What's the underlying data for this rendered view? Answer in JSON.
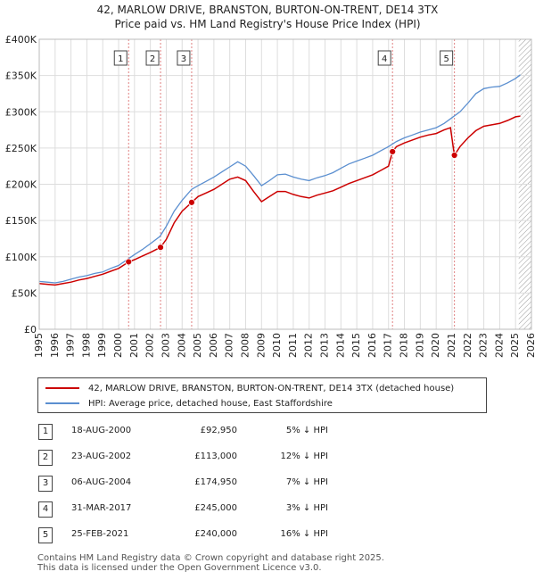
{
  "title_line1": "42, MARLOW DRIVE, BRANSTON, BURTON-ON-TRENT, DE14 3TX",
  "title_line2": "Price paid vs. HM Land Registry's House Price Index (HPI)",
  "colors": {
    "price": "#cc0000",
    "hpi": "#5b8fd0",
    "grid": "#dddddd",
    "marker_line": "#e08080",
    "plot_bg": "#ffffff",
    "hatch": "#999999"
  },
  "legend": {
    "price_label": "42, MARLOW DRIVE, BRANSTON, BURTON-ON-TRENT, DE14 3TX (detached house)",
    "hpi_label": "HPI: Average price, detached house, East Staffordshire"
  },
  "transactions": [
    {
      "num": "1",
      "date": "18-AUG-2000",
      "price": "£92,950",
      "hpi": "5% ↓ HPI"
    },
    {
      "num": "2",
      "date": "23-AUG-2002",
      "price": "£113,000",
      "hpi": "12% ↓ HPI"
    },
    {
      "num": "3",
      "date": "06-AUG-2004",
      "price": "£174,950",
      "hpi": "7% ↓ HPI"
    },
    {
      "num": "4",
      "date": "31-MAR-2017",
      "price": "£245,000",
      "hpi": "3% ↓ HPI"
    },
    {
      "num": "5",
      "date": "25-FEB-2021",
      "price": "£240,000",
      "hpi": "16% ↓ HPI"
    }
  ],
  "footer_line1": "Contains HM Land Registry data © Crown copyright and database right 2025.",
  "footer_line2": "This data is licensed under the Open Government Licence v3.0.",
  "chart_data": {
    "type": "line",
    "title": "42, MARLOW DRIVE, BRANSTON, BURTON-ON-TRENT, DE14 3TX",
    "subtitle": "Price paid vs. HM Land Registry's House Price Index (HPI)",
    "xlabel": "",
    "ylabel": "",
    "xlim": [
      1995,
      2026
    ],
    "ylim": [
      0,
      400000
    ],
    "x_ticks": [
      1995,
      1996,
      1997,
      1998,
      1999,
      2000,
      2001,
      2002,
      2003,
      2004,
      2005,
      2006,
      2007,
      2008,
      2009,
      2010,
      2011,
      2012,
      2013,
      2014,
      2015,
      2016,
      2017,
      2018,
      2019,
      2020,
      2021,
      2022,
      2023,
      2024,
      2025,
      2026
    ],
    "y_ticks": [
      {
        "value": 0,
        "label": "£0"
      },
      {
        "value": 50000,
        "label": "£50K"
      },
      {
        "value": 100000,
        "label": "£100K"
      },
      {
        "value": 150000,
        "label": "£150K"
      },
      {
        "value": 200000,
        "label": "£200K"
      },
      {
        "value": 250000,
        "label": "£250K"
      },
      {
        "value": 300000,
        "label": "£300K"
      },
      {
        "value": 350000,
        "label": "£350K"
      },
      {
        "value": 400000,
        "label": "£400K"
      }
    ],
    "grid": true,
    "hatched_from": 2025.2,
    "series": [
      {
        "name": "HPI: Average price, detached house, East Staffordshire",
        "points": [
          [
            1995,
            66000
          ],
          [
            1995.5,
            65000
          ],
          [
            1996,
            64000
          ],
          [
            1996.5,
            66000
          ],
          [
            1997,
            69000
          ],
          [
            1997.5,
            72000
          ],
          [
            1998,
            74000
          ],
          [
            1998.5,
            77000
          ],
          [
            1999,
            79000
          ],
          [
            1999.5,
            84000
          ],
          [
            2000,
            88000
          ],
          [
            2000.6,
            97000
          ],
          [
            2001,
            103000
          ],
          [
            2001.5,
            110000
          ],
          [
            2002,
            118000
          ],
          [
            2002.6,
            128000
          ],
          [
            2003,
            142000
          ],
          [
            2003.5,
            163000
          ],
          [
            2004,
            178000
          ],
          [
            2004.6,
            193000
          ],
          [
            2005,
            198000
          ],
          [
            2005.5,
            204000
          ],
          [
            2006,
            210000
          ],
          [
            2006.5,
            217000
          ],
          [
            2007,
            224000
          ],
          [
            2007.5,
            231000
          ],
          [
            2008,
            225000
          ],
          [
            2008.5,
            212000
          ],
          [
            2009,
            198000
          ],
          [
            2009.5,
            205000
          ],
          [
            2010,
            213000
          ],
          [
            2010.5,
            214000
          ],
          [
            2011,
            210000
          ],
          [
            2011.5,
            207000
          ],
          [
            2012,
            205000
          ],
          [
            2012.5,
            209000
          ],
          [
            2013,
            212000
          ],
          [
            2013.5,
            216000
          ],
          [
            2014,
            222000
          ],
          [
            2014.5,
            228000
          ],
          [
            2015,
            232000
          ],
          [
            2015.5,
            236000
          ],
          [
            2016,
            240000
          ],
          [
            2016.5,
            246000
          ],
          [
            2017,
            252000
          ],
          [
            2017.5,
            259000
          ],
          [
            2018,
            264000
          ],
          [
            2018.5,
            268000
          ],
          [
            2019,
            272000
          ],
          [
            2019.5,
            275000
          ],
          [
            2020,
            278000
          ],
          [
            2020.5,
            284000
          ],
          [
            2021,
            292000
          ],
          [
            2021.5,
            300000
          ],
          [
            2022,
            312000
          ],
          [
            2022.5,
            325000
          ],
          [
            2023,
            332000
          ],
          [
            2023.5,
            334000
          ],
          [
            2024,
            335000
          ],
          [
            2024.5,
            340000
          ],
          [
            2025,
            346000
          ],
          [
            2025.3,
            351000
          ]
        ]
      },
      {
        "name": "42, MARLOW DRIVE, BRANSTON, BURTON-ON-TRENT, DE14 3TX (detached house)",
        "points": [
          [
            1995,
            63000
          ],
          [
            1995.5,
            62000
          ],
          [
            1996,
            61000
          ],
          [
            1996.5,
            63000
          ],
          [
            1997,
            65000
          ],
          [
            1997.5,
            68000
          ],
          [
            1998,
            70000
          ],
          [
            1998.5,
            73000
          ],
          [
            1999,
            76000
          ],
          [
            1999.5,
            80000
          ],
          [
            2000,
            84000
          ],
          [
            2000.63,
            92950
          ],
          [
            2001,
            96000
          ],
          [
            2001.5,
            101000
          ],
          [
            2002,
            106000
          ],
          [
            2002.64,
            113000
          ],
          [
            2003,
            124000
          ],
          [
            2003.5,
            147000
          ],
          [
            2004,
            163000
          ],
          [
            2004.6,
            174950
          ],
          [
            2005,
            183000
          ],
          [
            2005.5,
            188000
          ],
          [
            2006,
            193000
          ],
          [
            2006.5,
            200000
          ],
          [
            2007,
            207000
          ],
          [
            2007.5,
            210000
          ],
          [
            2008,
            205000
          ],
          [
            2008.5,
            190000
          ],
          [
            2009,
            176000
          ],
          [
            2009.5,
            183000
          ],
          [
            2010,
            190000
          ],
          [
            2010.5,
            190000
          ],
          [
            2011,
            186000
          ],
          [
            2011.5,
            183000
          ],
          [
            2012,
            181000
          ],
          [
            2012.5,
            185000
          ],
          [
            2013,
            188000
          ],
          [
            2013.5,
            191000
          ],
          [
            2014,
            196000
          ],
          [
            2014.5,
            201000
          ],
          [
            2015,
            205000
          ],
          [
            2015.5,
            209000
          ],
          [
            2016,
            213000
          ],
          [
            2016.5,
            219000
          ],
          [
            2017,
            225000
          ],
          [
            2017.25,
            245000
          ],
          [
            2017.5,
            252000
          ],
          [
            2018,
            257000
          ],
          [
            2018.5,
            261000
          ],
          [
            2019,
            265000
          ],
          [
            2019.5,
            268000
          ],
          [
            2020,
            270000
          ],
          [
            2020.5,
            275000
          ],
          [
            2020.9,
            278000
          ],
          [
            2021.15,
            240000
          ],
          [
            2021.5,
            252000
          ],
          [
            2022,
            264000
          ],
          [
            2022.5,
            274000
          ],
          [
            2023,
            280000
          ],
          [
            2023.5,
            282000
          ],
          [
            2024,
            284000
          ],
          [
            2024.5,
            288000
          ],
          [
            2025,
            293000
          ],
          [
            2025.3,
            294000
          ]
        ]
      }
    ],
    "sales": [
      {
        "num": "1",
        "x": 2000.63,
        "value": 92950
      },
      {
        "num": "2",
        "x": 2002.64,
        "value": 113000
      },
      {
        "num": "3",
        "x": 2004.6,
        "value": 174950
      },
      {
        "num": "4",
        "x": 2017.25,
        "value": 245000
      },
      {
        "num": "5",
        "x": 2021.15,
        "value": 240000
      }
    ]
  }
}
